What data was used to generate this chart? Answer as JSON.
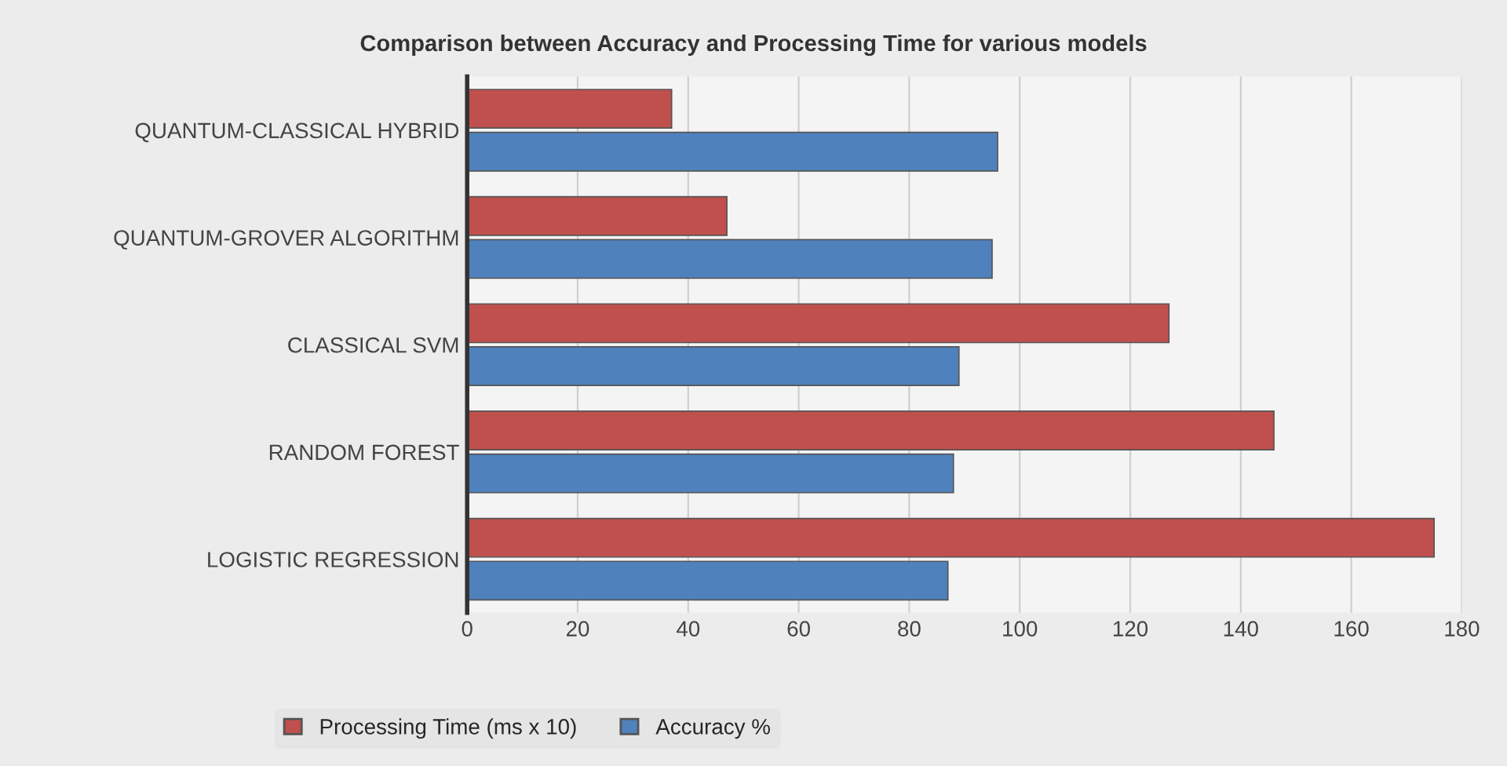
{
  "chart_data": {
    "type": "bar",
    "orientation": "horizontal",
    "title": "Comparison between Accuracy and Processing Time for various models",
    "categories": [
      "QUANTUM-CLASSICAL HYBRID",
      "QUANTUM-GROVER ALGORITHM",
      "CLASSICAL SVM",
      "RANDOM FOREST",
      "LOGISTIC REGRESSION"
    ],
    "series": [
      {
        "name": "Processing Time (ms x 10)",
        "color": "#c0504d",
        "values": [
          37,
          47,
          127,
          146,
          175
        ]
      },
      {
        "name": "Accuracy %",
        "color": "#4f81bd",
        "values": [
          96,
          95,
          89,
          88,
          87
        ]
      }
    ],
    "xlim": [
      0,
      180
    ],
    "xticks": [
      0,
      20,
      40,
      60,
      80,
      100,
      120,
      140,
      160,
      180
    ],
    "grid": "x",
    "legend": "bottom"
  }
}
